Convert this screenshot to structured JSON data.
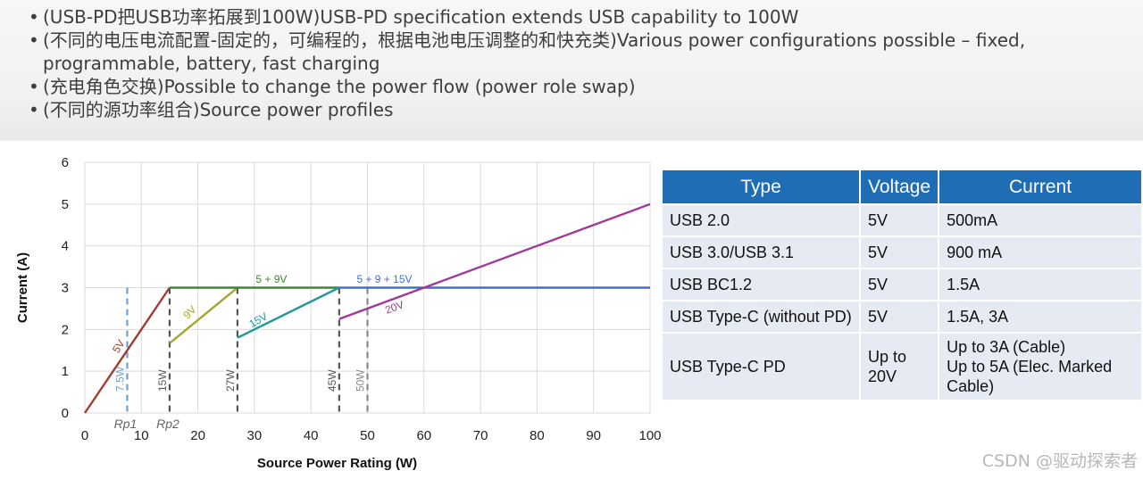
{
  "bullets": [
    "(USB-PD把USB功率拓展到100W)USB-PD specification extends USB capability to 100W",
    "(不同的电压电流配置-固定的，可编程的，根据电池电压调整的和快充类)Various power configurations possible – fixed, programmable, battery, fast charging",
    "(充电角色交换)Possible to change the power flow (power role swap)",
    "(不同的源功率组合)Source power profiles"
  ],
  "chart_data": {
    "type": "line",
    "xlabel": "Source Power Rating (W)",
    "ylabel": "Current (A)",
    "xlim": [
      0,
      100
    ],
    "ylim": [
      0,
      6
    ],
    "x_ticks": [
      0,
      10,
      20,
      30,
      40,
      50,
      60,
      70,
      80,
      90,
      100
    ],
    "y_ticks": [
      0,
      1,
      2,
      3,
      4,
      5,
      6
    ],
    "grid": true,
    "series": [
      {
        "name": "5V",
        "color": "#a33b2f",
        "points": [
          [
            0,
            0
          ],
          [
            15,
            3
          ]
        ]
      },
      {
        "name": "9V",
        "color": "#a6a62c",
        "points": [
          [
            15,
            1.67
          ],
          [
            27,
            3
          ]
        ]
      },
      {
        "name": "5 + 9V",
        "color": "#3a8a2e",
        "points": [
          [
            15,
            3
          ],
          [
            27,
            3
          ],
          [
            45,
            3
          ]
        ]
      },
      {
        "name": "15V",
        "color": "#1f9999",
        "points": [
          [
            27,
            1.8
          ],
          [
            45,
            3
          ]
        ]
      },
      {
        "name": "5 + 9 + 15V",
        "color": "#3f6fd8",
        "points": [
          [
            45,
            3
          ],
          [
            100,
            3
          ]
        ]
      },
      {
        "name": "20V",
        "color": "#a03a9a",
        "points": [
          [
            45,
            2.25
          ],
          [
            100,
            5
          ]
        ]
      }
    ],
    "vertical_markers": [
      {
        "x": 7.5,
        "label": "7.5W",
        "color": "#6f9fd0"
      },
      {
        "x": 15,
        "label": "15W",
        "color": "#555555"
      },
      {
        "x": 27,
        "label": "27W",
        "color": "#555555"
      },
      {
        "x": 45,
        "label": "45W",
        "color": "#555555"
      },
      {
        "x": 50,
        "label": "50W",
        "color": "#888888"
      }
    ],
    "point_labels": [
      {
        "x": 7.5,
        "text": "Rp1"
      },
      {
        "x": 15,
        "text": "Rp2"
      }
    ]
  },
  "table": {
    "headers": [
      "Type",
      "Voltage",
      "Current"
    ],
    "rows": [
      {
        "type": "USB 2.0",
        "voltage": "5V",
        "current": "500mA"
      },
      {
        "type": "USB 3.0/USB 3.1",
        "voltage": "5V",
        "current": "900 mA"
      },
      {
        "type": "USB BC1.2",
        "voltage": "5V",
        "current": "1.5A"
      },
      {
        "type": "USB Type-C (without PD)",
        "voltage": "5V",
        "current": "1.5A, 3A"
      },
      {
        "type": "USB Type-C PD",
        "voltage_lines": [
          "Up to",
          "20V"
        ],
        "current_lines": [
          "Up to 3A (Cable)",
          "Up to 5A (Elec. Marked",
          "Cable)"
        ]
      }
    ]
  },
  "watermark": "CSDN @驱动探索者",
  "colors": {
    "header_bg": "#1f6db5",
    "row_bg": "#e6eaf2"
  }
}
